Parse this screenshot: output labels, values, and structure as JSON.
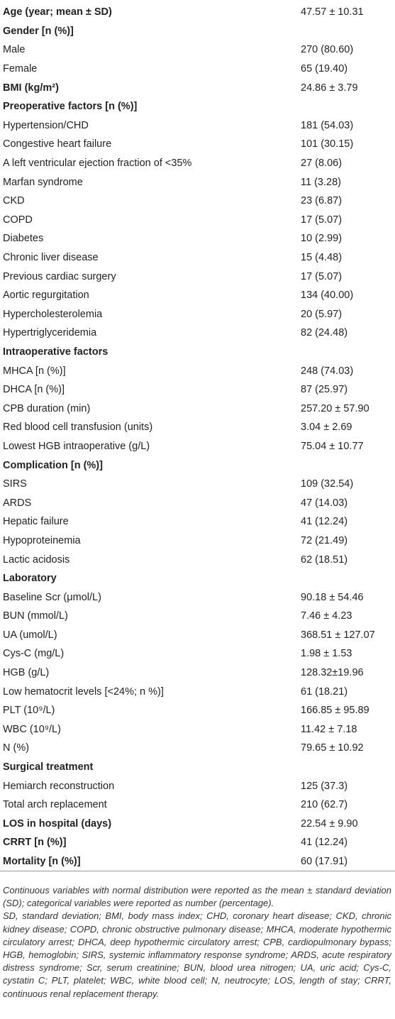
{
  "table": {
    "rows": [
      {
        "label": "Age (year; mean ± SD)",
        "value": "47.57 ± 10.31",
        "bold": true
      },
      {
        "label": "Gender [n (%)]",
        "bold": true
      },
      {
        "label": "Male",
        "value": "270 (80.60)"
      },
      {
        "label": "Female",
        "value": "65 (19.40)"
      },
      {
        "label": "BMI (kg/m²)",
        "value": "24.86 ± 3.79",
        "bold": true
      },
      {
        "label": "Preoperative factors [n (%)]",
        "bold": true
      },
      {
        "label": "Hypertension/CHD",
        "value": "181 (54.03)"
      },
      {
        "label": "Congestive heart failure",
        "value": "101 (30.15)"
      },
      {
        "label": "A left ventricular ejection fraction of <35%",
        "value": "27 (8.06)"
      },
      {
        "label": "Marfan syndrome",
        "value": "11 (3.28)"
      },
      {
        "label": "CKD",
        "value": "23 (6.87)"
      },
      {
        "label": "COPD",
        "value": "17 (5.07)"
      },
      {
        "label": "Diabetes",
        "value": "10 (2.99)"
      },
      {
        "label": "Chronic liver disease",
        "value": "15 (4.48)"
      },
      {
        "label": "Previous cardiac surgery",
        "value": "17 (5.07)"
      },
      {
        "label": "Aortic regurgitation",
        "value": "134 (40.00)"
      },
      {
        "label": "Hypercholesterolemia",
        "value": "20 (5.97)"
      },
      {
        "label": "Hypertriglyceridemia",
        "value": "82 (24.48)"
      },
      {
        "label": "Intraoperative factors",
        "bold": true
      },
      {
        "label": "MHCA [n (%)]",
        "value": "248 (74.03)"
      },
      {
        "label": "DHCA [n (%)]",
        "value": "87 (25.97)"
      },
      {
        "label": "CPB duration (min)",
        "value": "257.20 ± 57.90"
      },
      {
        "label": "Red blood cell transfusion (units)",
        "value": "3.04 ± 2.69"
      },
      {
        "label": "Lowest HGB intraoperative (g/L)",
        "value": "75.04 ± 10.77"
      },
      {
        "label": "Complication [n (%)]",
        "bold": true
      },
      {
        "label": "SIRS",
        "value": "109 (32.54)"
      },
      {
        "label": "ARDS",
        "value": "47 (14.03)"
      },
      {
        "label": "Hepatic failure",
        "value": "41 (12.24)"
      },
      {
        "label": "Hypoproteinemia",
        "value": "72 (21.49)"
      },
      {
        "label": "Lactic acidosis",
        "value": "62 (18.51)"
      },
      {
        "label": "Laboratory",
        "bold": true
      },
      {
        "label": "Baseline Scr (μmol/L)",
        "value": "90.18 ± 54.46"
      },
      {
        "label": "BUN (mmol/L)",
        "value": "7.46 ± 4.23"
      },
      {
        "label": "UA (umol/L)",
        "value": "368.51 ± 127.07"
      },
      {
        "label": "Cys-C (mg/L)",
        "value": "1.98 ± 1.53"
      },
      {
        "label": "HGB (g/L)",
        "value": "128.32±19.96"
      },
      {
        "label": "Low hematocrit levels [<24%; n %)]",
        "value": "61 (18.21)"
      },
      {
        "label": "PLT (10⁹/L)",
        "value": "166.85 ± 95.89"
      },
      {
        "label": "WBC (10⁹/L)",
        "value": "11.42 ± 7.18"
      },
      {
        "label": "N (%)",
        "value": "79.65 ± 10.92"
      },
      {
        "label": "Surgical treatment",
        "bold": true
      },
      {
        "label": "Hemiarch reconstruction",
        "value": "125 (37.3)"
      },
      {
        "label": "Total arch replacement",
        "value": "210 (62.7)"
      },
      {
        "label": "LOS in hospital (days)",
        "value": "22.54 ± 9.90",
        "bold": true
      },
      {
        "label": "CRRT [n (%)]",
        "value": "41 (12.24)",
        "bold": true
      },
      {
        "label": "Mortality [n (%)]",
        "value": "60 (17.91)",
        "bold": true
      }
    ]
  },
  "notes": [
    "Continuous variables with normal distribution were reported as the mean ± standard deviation (SD); categorical variables were reported as number (percentage).",
    "SD, standard deviation; BMI, body mass index; CHD, coronary heart disease; CKD, chronic kidney disease; COPD, chronic obstructive pulmonary disease; MHCA, moderate hypothermic circulatory arrest; DHCA, deep hypothermic circulatory arrest; CPB, cardiopulmonary bypass; HGB, hemoglobin; SIRS, systemic inflammatory response syndrome; ARDS, acute respiratory distress syndrome; Scr, serum creatinine; BUN, blood urea nitrogen; UA, uric acid; Cys-C, cystatin C; PLT, platelet; WBC, white blood cell; N, neutrocyte; LOS, length of stay; CRRT, continuous renal replacement therapy."
  ]
}
